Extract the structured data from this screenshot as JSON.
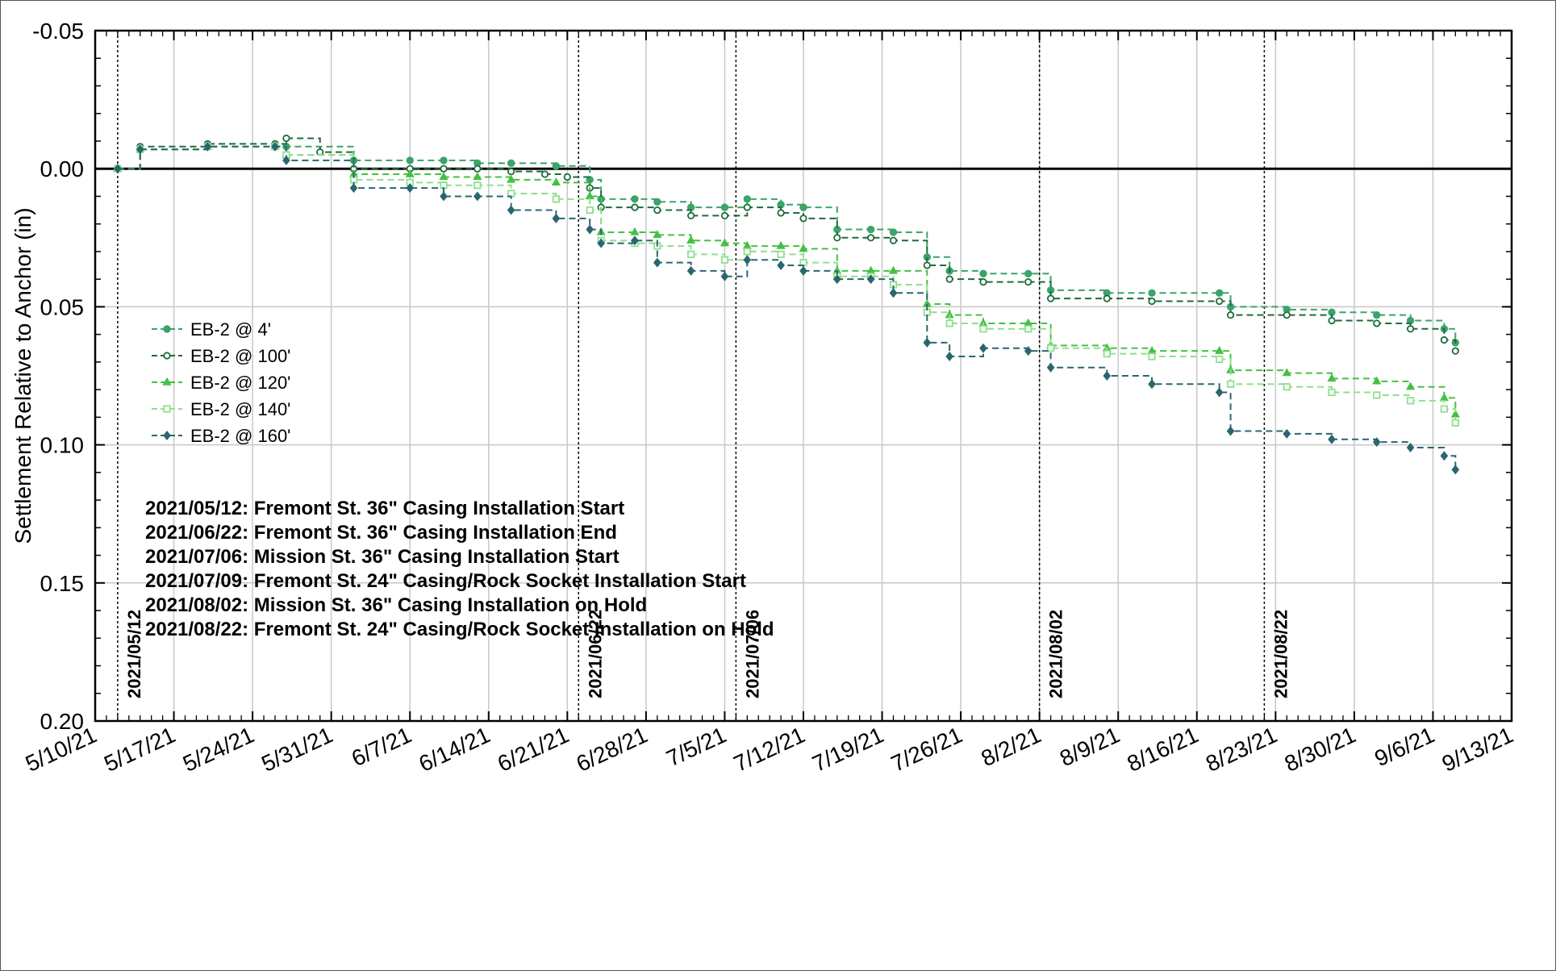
{
  "chart_data": {
    "type": "line",
    "title": "",
    "ylabel": "Settlement Relative to Anchor (in)",
    "xlabel": "",
    "x_range": [
      "2021-05-10",
      "2021-09-13"
    ],
    "ylim": [
      -0.05,
      0.2
    ],
    "y_axis_inverted": true,
    "grid": true,
    "x_ticks": [
      "5/10/21",
      "5/17/21",
      "5/24/21",
      "5/31/21",
      "6/7/21",
      "6/14/21",
      "6/21/21",
      "6/28/21",
      "7/5/21",
      "7/12/21",
      "7/19/21",
      "7/26/21",
      "8/2/21",
      "8/9/21",
      "8/16/21",
      "8/23/21",
      "8/30/21",
      "9/6/21",
      "9/13/21"
    ],
    "y_ticks": [
      "-0.05",
      "0.00",
      "0.05",
      "0.10",
      "0.15",
      "0.20"
    ],
    "legend_position": "middle-left",
    "series": [
      {
        "name": "EB-2 @ 4'",
        "color": "#3aa46a",
        "marker": "circle-filled",
        "points": [
          [
            "2021-05-12",
            0.0
          ],
          [
            "2021-05-14",
            -0.007
          ],
          [
            "2021-05-20",
            -0.008
          ],
          [
            "2021-05-26",
            -0.008
          ],
          [
            "2021-05-27",
            -0.008
          ],
          [
            "2021-06-02",
            -0.003
          ],
          [
            "2021-06-07",
            -0.003
          ],
          [
            "2021-06-10",
            -0.003
          ],
          [
            "2021-06-13",
            -0.002
          ],
          [
            "2021-06-16",
            -0.002
          ],
          [
            "2021-06-20",
            -0.001
          ],
          [
            "2021-06-23",
            0.004
          ],
          [
            "2021-06-24",
            0.011
          ],
          [
            "2021-06-27",
            0.011
          ],
          [
            "2021-06-29",
            0.012
          ],
          [
            "2021-07-02",
            0.014
          ],
          [
            "2021-07-05",
            0.014
          ],
          [
            "2021-07-07",
            0.011
          ],
          [
            "2021-07-10",
            0.013
          ],
          [
            "2021-07-12",
            0.014
          ],
          [
            "2021-07-15",
            0.022
          ],
          [
            "2021-07-18",
            0.022
          ],
          [
            "2021-07-20",
            0.023
          ],
          [
            "2021-07-23",
            0.032
          ],
          [
            "2021-07-25",
            0.037
          ],
          [
            "2021-07-28",
            0.038
          ],
          [
            "2021-08-01",
            0.038
          ],
          [
            "2021-08-03",
            0.044
          ],
          [
            "2021-08-08",
            0.045
          ],
          [
            "2021-08-12",
            0.045
          ],
          [
            "2021-08-18",
            0.045
          ],
          [
            "2021-08-19",
            0.05
          ],
          [
            "2021-08-24",
            0.051
          ],
          [
            "2021-08-28",
            0.052
          ],
          [
            "2021-09-01",
            0.053
          ],
          [
            "2021-09-04",
            0.055
          ],
          [
            "2021-09-07",
            0.058
          ],
          [
            "2021-09-08",
            0.063
          ]
        ]
      },
      {
        "name": "EB-2 @ 100'",
        "color": "#1f6b3c",
        "marker": "circle-open",
        "points": [
          [
            "2021-05-12",
            0.0
          ],
          [
            "2021-05-14",
            -0.008
          ],
          [
            "2021-05-20",
            -0.009
          ],
          [
            "2021-05-26",
            -0.009
          ],
          [
            "2021-05-27",
            -0.011
          ],
          [
            "2021-05-30",
            -0.006
          ],
          [
            "2021-06-02",
            0.0
          ],
          [
            "2021-06-07",
            0.0
          ],
          [
            "2021-06-10",
            0.0
          ],
          [
            "2021-06-13",
            0.0
          ],
          [
            "2021-06-16",
            0.001
          ],
          [
            "2021-06-19",
            0.002
          ],
          [
            "2021-06-21",
            0.003
          ],
          [
            "2021-06-23",
            0.007
          ],
          [
            "2021-06-24",
            0.014
          ],
          [
            "2021-06-27",
            0.014
          ],
          [
            "2021-06-29",
            0.015
          ],
          [
            "2021-07-02",
            0.017
          ],
          [
            "2021-07-05",
            0.017
          ],
          [
            "2021-07-07",
            0.014
          ],
          [
            "2021-07-10",
            0.016
          ],
          [
            "2021-07-12",
            0.018
          ],
          [
            "2021-07-15",
            0.025
          ],
          [
            "2021-07-18",
            0.025
          ],
          [
            "2021-07-20",
            0.026
          ],
          [
            "2021-07-23",
            0.035
          ],
          [
            "2021-07-25",
            0.04
          ],
          [
            "2021-07-28",
            0.041
          ],
          [
            "2021-08-01",
            0.041
          ],
          [
            "2021-08-03",
            0.047
          ],
          [
            "2021-08-08",
            0.047
          ],
          [
            "2021-08-12",
            0.048
          ],
          [
            "2021-08-18",
            0.048
          ],
          [
            "2021-08-19",
            0.053
          ],
          [
            "2021-08-24",
            0.053
          ],
          [
            "2021-08-28",
            0.055
          ],
          [
            "2021-09-01",
            0.056
          ],
          [
            "2021-09-04",
            0.058
          ],
          [
            "2021-09-07",
            0.062
          ],
          [
            "2021-09-08",
            0.066
          ]
        ]
      },
      {
        "name": "EB-2 @ 120'",
        "color": "#45c045",
        "marker": "triangle",
        "points": [
          [
            "2021-05-12",
            0.0
          ],
          [
            "2021-05-14",
            -0.007
          ],
          [
            "2021-05-20",
            -0.008
          ],
          [
            "2021-05-26",
            -0.008
          ],
          [
            "2021-05-27",
            -0.005
          ],
          [
            "2021-06-02",
            0.002
          ],
          [
            "2021-06-07",
            0.002
          ],
          [
            "2021-06-10",
            0.003
          ],
          [
            "2021-06-13",
            0.003
          ],
          [
            "2021-06-16",
            0.004
          ],
          [
            "2021-06-20",
            0.005
          ],
          [
            "2021-06-23",
            0.01
          ],
          [
            "2021-06-24",
            0.023
          ],
          [
            "2021-06-27",
            0.023
          ],
          [
            "2021-06-29",
            0.024
          ],
          [
            "2021-07-02",
            0.026
          ],
          [
            "2021-07-05",
            0.027
          ],
          [
            "2021-07-07",
            0.028
          ],
          [
            "2021-07-10",
            0.028
          ],
          [
            "2021-07-12",
            0.029
          ],
          [
            "2021-07-15",
            0.037
          ],
          [
            "2021-07-18",
            0.037
          ],
          [
            "2021-07-20",
            0.037
          ],
          [
            "2021-07-23",
            0.049
          ],
          [
            "2021-07-25",
            0.053
          ],
          [
            "2021-07-28",
            0.056
          ],
          [
            "2021-08-01",
            0.056
          ],
          [
            "2021-08-03",
            0.064
          ],
          [
            "2021-08-08",
            0.065
          ],
          [
            "2021-08-12",
            0.066
          ],
          [
            "2021-08-18",
            0.066
          ],
          [
            "2021-08-19",
            0.073
          ],
          [
            "2021-08-24",
            0.074
          ],
          [
            "2021-08-28",
            0.076
          ],
          [
            "2021-09-01",
            0.077
          ],
          [
            "2021-09-04",
            0.079
          ],
          [
            "2021-09-07",
            0.083
          ],
          [
            "2021-09-08",
            0.089
          ]
        ]
      },
      {
        "name": "EB-2 @ 140'",
        "color": "#8ee08e",
        "marker": "square-open",
        "points": [
          [
            "2021-05-12",
            0.0
          ],
          [
            "2021-05-14",
            -0.007
          ],
          [
            "2021-05-20",
            -0.008
          ],
          [
            "2021-05-26",
            -0.008
          ],
          [
            "2021-05-27",
            -0.005
          ],
          [
            "2021-06-02",
            0.004
          ],
          [
            "2021-06-07",
            0.005
          ],
          [
            "2021-06-10",
            0.006
          ],
          [
            "2021-06-13",
            0.006
          ],
          [
            "2021-06-16",
            0.009
          ],
          [
            "2021-06-20",
            0.011
          ],
          [
            "2021-06-23",
            0.015
          ],
          [
            "2021-06-24",
            0.026
          ],
          [
            "2021-06-27",
            0.027
          ],
          [
            "2021-06-29",
            0.028
          ],
          [
            "2021-07-02",
            0.031
          ],
          [
            "2021-07-05",
            0.033
          ],
          [
            "2021-07-07",
            0.03
          ],
          [
            "2021-07-10",
            0.031
          ],
          [
            "2021-07-12",
            0.034
          ],
          [
            "2021-07-15",
            0.039
          ],
          [
            "2021-07-18",
            0.039
          ],
          [
            "2021-07-20",
            0.042
          ],
          [
            "2021-07-23",
            0.052
          ],
          [
            "2021-07-25",
            0.056
          ],
          [
            "2021-07-28",
            0.058
          ],
          [
            "2021-08-01",
            0.058
          ],
          [
            "2021-08-03",
            0.065
          ],
          [
            "2021-08-08",
            0.067
          ],
          [
            "2021-08-12",
            0.068
          ],
          [
            "2021-08-18",
            0.069
          ],
          [
            "2021-08-19",
            0.078
          ],
          [
            "2021-08-24",
            0.079
          ],
          [
            "2021-08-28",
            0.081
          ],
          [
            "2021-09-01",
            0.082
          ],
          [
            "2021-09-04",
            0.084
          ],
          [
            "2021-09-07",
            0.087
          ],
          [
            "2021-09-08",
            0.092
          ]
        ]
      },
      {
        "name": "EB-2 @ 160'",
        "color": "#2b6670",
        "marker": "diamond",
        "points": [
          [
            "2021-05-12",
            0.0
          ],
          [
            "2021-05-14",
            -0.007
          ],
          [
            "2021-05-20",
            -0.008
          ],
          [
            "2021-05-26",
            -0.008
          ],
          [
            "2021-05-27",
            -0.003
          ],
          [
            "2021-06-02",
            0.007
          ],
          [
            "2021-06-07",
            0.007
          ],
          [
            "2021-06-10",
            0.01
          ],
          [
            "2021-06-13",
            0.01
          ],
          [
            "2021-06-16",
            0.015
          ],
          [
            "2021-06-20",
            0.018
          ],
          [
            "2021-06-23",
            0.022
          ],
          [
            "2021-06-24",
            0.027
          ],
          [
            "2021-06-27",
            0.026
          ],
          [
            "2021-06-29",
            0.034
          ],
          [
            "2021-07-02",
            0.037
          ],
          [
            "2021-07-05",
            0.039
          ],
          [
            "2021-07-07",
            0.033
          ],
          [
            "2021-07-10",
            0.035
          ],
          [
            "2021-07-12",
            0.037
          ],
          [
            "2021-07-15",
            0.04
          ],
          [
            "2021-07-18",
            0.04
          ],
          [
            "2021-07-20",
            0.045
          ],
          [
            "2021-07-23",
            0.063
          ],
          [
            "2021-07-25",
            0.068
          ],
          [
            "2021-07-28",
            0.065
          ],
          [
            "2021-08-01",
            0.066
          ],
          [
            "2021-08-03",
            0.072
          ],
          [
            "2021-08-08",
            0.075
          ],
          [
            "2021-08-12",
            0.078
          ],
          [
            "2021-08-18",
            0.081
          ],
          [
            "2021-08-19",
            0.095
          ],
          [
            "2021-08-24",
            0.096
          ],
          [
            "2021-08-28",
            0.098
          ],
          [
            "2021-09-01",
            0.099
          ],
          [
            "2021-09-04",
            0.101
          ],
          [
            "2021-09-07",
            0.104
          ],
          [
            "2021-09-08",
            0.109
          ]
        ]
      }
    ],
    "vertical_lines": [
      {
        "date": "2021-05-12",
        "label": "2021/05/12"
      },
      {
        "date": "2021-06-22",
        "label": "2021/06/22"
      },
      {
        "date": "2021-07-06",
        "label": "2021/07/06"
      },
      {
        "date": "2021-08-02",
        "label": "2021/08/02"
      },
      {
        "date": "2021-08-22",
        "label": "2021/08/22"
      }
    ],
    "annotations": [
      "2021/05/12: Fremont St. 36\" Casing Installation Start",
      "2021/06/22: Fremont St. 36\" Casing Installation End",
      "2021/07/06: Mission St.  36\" Casing Installation Start",
      "2021/07/09: Fremont St. 24\" Casing/Rock Socket Installation Start",
      "2021/08/02: Mission St.  36\" Casing Installation on Hold",
      "2021/08/22: Fremont St. 24\" Casing/Rock Socket Installation on Hold"
    ]
  }
}
